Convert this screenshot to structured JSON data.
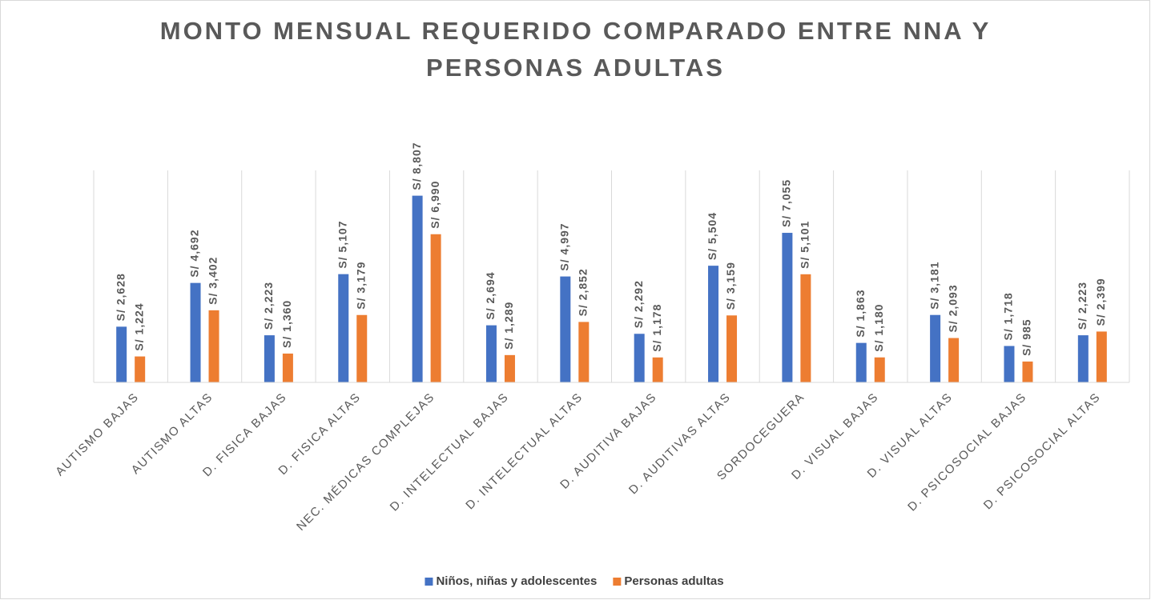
{
  "chart_data": {
    "type": "bar",
    "title": "MONTO MENSUAL REQUERIDO COMPARADO ENTRE NNA Y PERSONAS ADULTAS",
    "categories": [
      "AUTISMO BAJAS",
      "AUTISMO ALTAS",
      "D. FISICA BAJAS",
      "D. FISICA ALTAS",
      "NEC. MÉDICAS COMPLEJAS",
      "D. INTELECTUAL BAJAS",
      "D. INTELECTUAL ALTAS",
      "D. AUDITIVA BAJAS",
      "D. AUDITIVAS ALTAS",
      "SORDOCEGUERA",
      "D. VISUAL BAJAS",
      "D. VISUAL ALTAS",
      "D. PSICOSOCIAL BAJAS",
      "D. PSICOSOCIAL ALTAS"
    ],
    "series": [
      {
        "name": "Niños, niñas y adolescentes",
        "color": "#4472c4",
        "values": [
          2628,
          4692,
          2223,
          5107,
          8807,
          2694,
          4997,
          2292,
          5504,
          7055,
          1863,
          3181,
          1718,
          2223
        ],
        "value_labels": [
          "S/ 2,628",
          "S/ 4,692",
          "S/ 2,223",
          "S/ 5,107",
          "S/ 8,807",
          "S/ 2,694",
          "S/ 4,997",
          "S/ 2,292",
          "S/ 5,504",
          "S/ 7,055",
          "S/ 1,863",
          "S/ 3,181",
          "S/ 1,718",
          "S/ 2,223"
        ]
      },
      {
        "name": "Personas adultas",
        "color": "#ed7d31",
        "values": [
          1224,
          3402,
          1360,
          3179,
          6990,
          1289,
          2852,
          1178,
          3159,
          5101,
          1180,
          2093,
          985,
          2399
        ],
        "value_labels": [
          "S/ 1,224",
          "S/ 3,402",
          "S/ 1,360",
          "S/ 3,179",
          "S/ 6,990",
          "S/ 1,289",
          "S/ 2,852",
          "S/ 1,178",
          "S/ 3,159",
          "S/ 5,101",
          "S/ 1,180",
          "S/ 2,093",
          "S/ 985",
          "S/ 2,399"
        ]
      }
    ],
    "ylim": [
      0,
      10000
    ],
    "legend": "bottom"
  }
}
